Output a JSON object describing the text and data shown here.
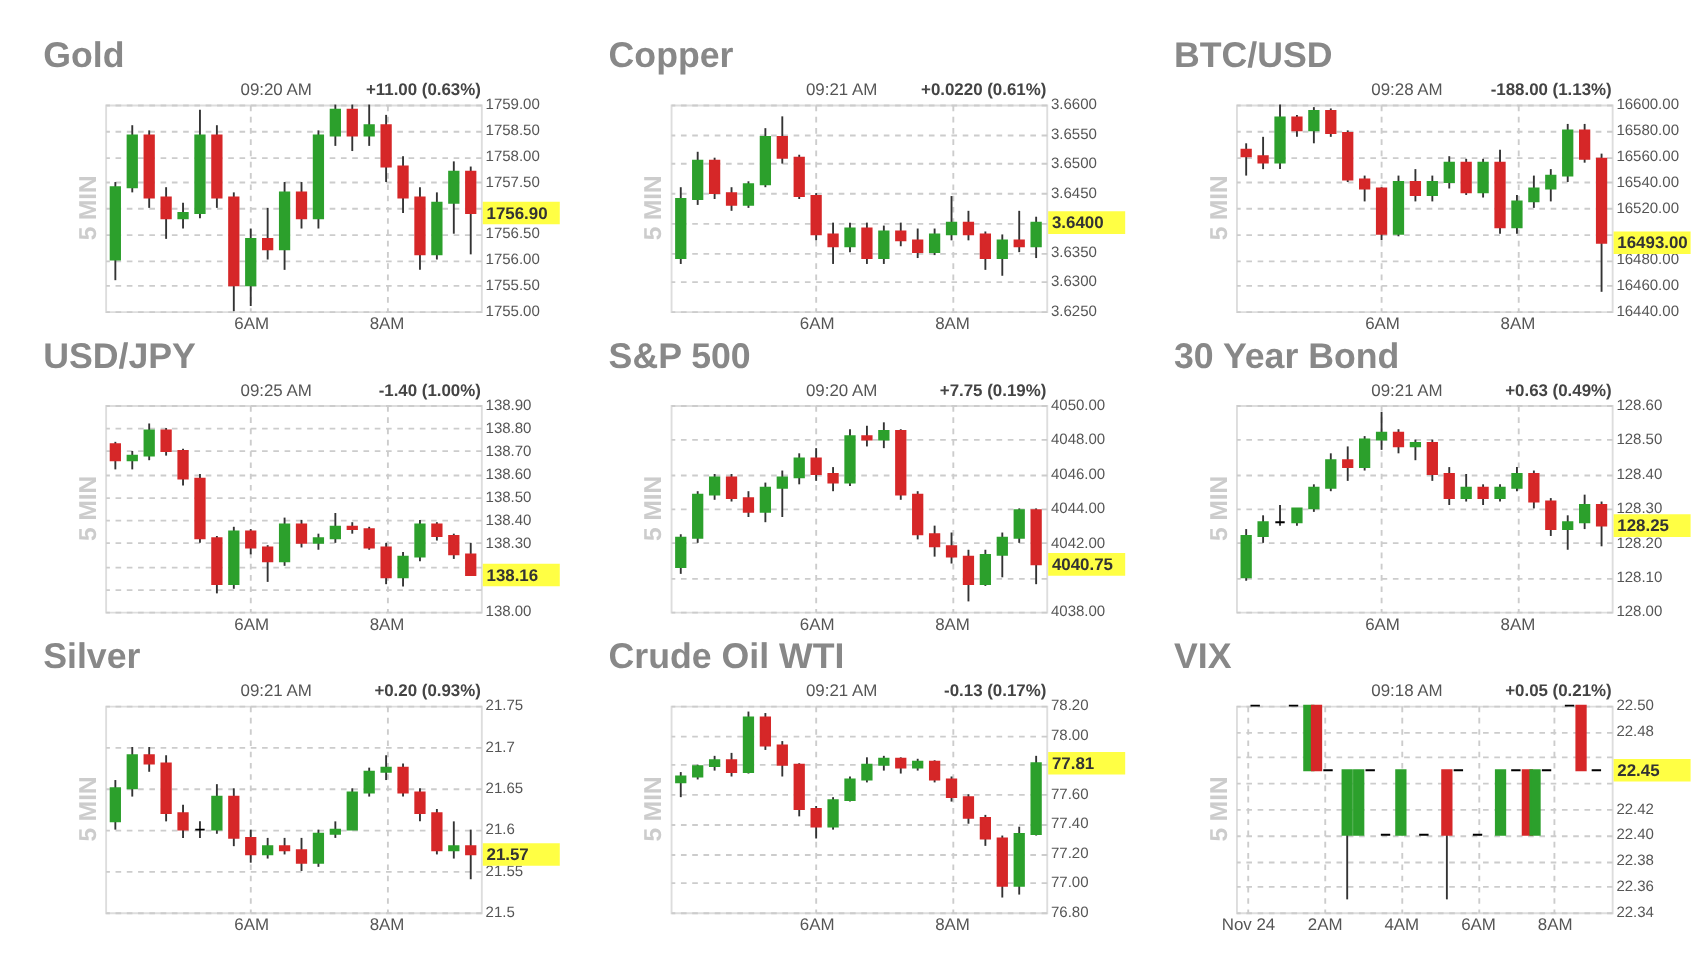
{
  "chart_data": [
    {
      "type": "candlestick",
      "title": "Gold",
      "ylabel": "5 MIN",
      "annotations": [
        "09:20 AM",
        "+11.00 (0.63%)",
        "1756.90"
      ],
      "x": [
        4,
        4.25,
        4.5,
        4.75,
        5,
        5.25,
        5.5,
        5.75,
        6,
        6.25,
        6.5,
        6.75,
        7,
        7.25,
        7.5,
        7.75,
        8,
        8.25,
        8.5,
        8.75,
        9,
        9.25
      ],
      "ohlc": [
        [
          1756.0,
          1757.5,
          1755.6,
          1757.4
        ],
        [
          1757.4,
          1758.6,
          1757.3,
          1758.4
        ],
        [
          1758.4,
          1758.5,
          1757.0,
          1757.2
        ],
        [
          1757.2,
          1757.4,
          1756.4,
          1756.8
        ],
        [
          1756.8,
          1757.1,
          1756.6,
          1756.9
        ],
        [
          1756.9,
          1758.9,
          1756.8,
          1758.4
        ],
        [
          1758.4,
          1758.6,
          1757.0,
          1757.2
        ],
        [
          1757.2,
          1757.3,
          1755.0,
          1755.5
        ],
        [
          1755.5,
          1756.6,
          1755.1,
          1756.4
        ],
        [
          1756.4,
          1757.0,
          1756.0,
          1756.2
        ],
        [
          1756.2,
          1757.5,
          1755.8,
          1757.3
        ],
        [
          1757.3,
          1757.5,
          1756.6,
          1756.8
        ],
        [
          1756.8,
          1758.5,
          1756.6,
          1758.4
        ],
        [
          1758.4,
          1759.0,
          1758.2,
          1758.9
        ],
        [
          1758.9,
          1759.0,
          1758.1,
          1758.4
        ],
        [
          1758.4,
          1759.0,
          1758.2,
          1758.6
        ],
        [
          1758.6,
          1758.8,
          1757.5,
          1757.8
        ],
        [
          1757.8,
          1758.0,
          1756.9,
          1757.2
        ],
        [
          1757.2,
          1757.4,
          1755.8,
          1756.1
        ],
        [
          1756.1,
          1757.3,
          1756.0,
          1757.1
        ],
        [
          1757.1,
          1757.9,
          1756.5,
          1757.7
        ],
        [
          1757.7,
          1757.8,
          1756.1,
          1756.9
        ]
      ],
      "colors": [
        "#2ca02c",
        "#2ca02c",
        "#d62728",
        "#d62728",
        "#2ca02c",
        "#2ca02c",
        "#d62728",
        "#d62728",
        "#2ca02c",
        "#d62728",
        "#2ca02c",
        "#d62728",
        "#2ca02c",
        "#2ca02c",
        "#d62728",
        "#2ca02c",
        "#d62728",
        "#d62728",
        "#d62728",
        "#2ca02c",
        "#2ca02c",
        "#d62728"
      ],
      "xlim": [
        3.85,
        9.4
      ],
      "xticks": [
        {
          "value": 6,
          "label": "6AM"
        },
        {
          "value": 8,
          "label": "8AM"
        }
      ],
      "ylim": [
        1755,
        1759
      ],
      "yticks": [
        {
          "value": 1755,
          "label": "1755.00"
        },
        {
          "value": 1755.5,
          "label": "1755.50"
        },
        {
          "value": 1756,
          "label": "1756.00"
        },
        {
          "value": 1756.5,
          "label": "1756.50"
        },
        {
          "value": 1757,
          "label": null
        },
        {
          "value": 1757.5,
          "label": "1757.50"
        },
        {
          "value": 1758,
          "label": "1758.00"
        },
        {
          "value": 1758.5,
          "label": "1758.50"
        },
        {
          "value": 1759,
          "label": "1759.00"
        }
      ],
      "grid": true
    },
    {
      "type": "candlestick",
      "title": "Copper",
      "ylabel": "5 MIN",
      "annotations": [
        "09:21 AM",
        "+0.0220 (0.61%)",
        "3.6400"
      ],
      "x": [
        4,
        4.25,
        4.5,
        4.75,
        5,
        5.25,
        5.5,
        5.75,
        6,
        6.25,
        6.5,
        6.75,
        7,
        7.25,
        7.5,
        7.75,
        8,
        8.25,
        8.5,
        8.75,
        9,
        9.25
      ],
      "ohlc": [
        [
          3.634,
          3.646,
          3.633,
          3.644
        ],
        [
          3.644,
          3.652,
          3.643,
          3.6505
        ],
        [
          3.6505,
          3.651,
          3.644,
          3.645
        ],
        [
          3.645,
          3.646,
          3.642,
          3.643
        ],
        [
          3.643,
          3.647,
          3.6425,
          3.6465
        ],
        [
          3.6465,
          3.656,
          3.646,
          3.6545
        ],
        [
          3.6545,
          3.658,
          3.65,
          3.651
        ],
        [
          3.651,
          3.6515,
          3.644,
          3.6445
        ],
        [
          3.6445,
          3.645,
          3.637,
          3.638
        ],
        [
          3.638,
          3.64,
          3.633,
          3.636
        ],
        [
          3.636,
          3.64,
          3.635,
          3.639
        ],
        [
          3.639,
          3.64,
          3.633,
          3.634
        ],
        [
          3.634,
          3.6395,
          3.633,
          3.6385
        ],
        [
          3.6385,
          3.64,
          3.636,
          3.637
        ],
        [
          3.637,
          3.639,
          3.634,
          3.635
        ],
        [
          3.635,
          3.639,
          3.6345,
          3.638
        ],
        [
          3.638,
          3.6445,
          3.637,
          3.64
        ],
        [
          3.64,
          3.642,
          3.637,
          3.638
        ],
        [
          3.638,
          3.6385,
          3.632,
          3.634
        ],
        [
          3.634,
          3.638,
          3.631,
          3.637
        ],
        [
          3.637,
          3.642,
          3.635,
          3.636
        ],
        [
          3.636,
          3.641,
          3.634,
          3.64
        ]
      ],
      "colors": [
        "#2ca02c",
        "#2ca02c",
        "#d62728",
        "#d62728",
        "#2ca02c",
        "#2ca02c",
        "#d62728",
        "#d62728",
        "#d62728",
        "#d62728",
        "#2ca02c",
        "#d62728",
        "#2ca02c",
        "#d62728",
        "#d62728",
        "#2ca02c",
        "#2ca02c",
        "#d62728",
        "#d62728",
        "#2ca02c",
        "#d62728",
        "#2ca02c"
      ],
      "xlim": [
        3.85,
        9.4
      ],
      "xticks": [
        {
          "value": 6,
          "label": "6AM"
        },
        {
          "value": 8,
          "label": "8AM"
        }
      ],
      "ylim": [
        3.625,
        3.66
      ],
      "yticks": [
        {
          "value": 3.625,
          "label": "3.6250"
        },
        {
          "value": 3.63,
          "label": "3.6300"
        },
        {
          "value": 3.635,
          "label": "3.6350"
        },
        {
          "value": 3.64,
          "label": null
        },
        {
          "value": 3.645,
          "label": "3.6450"
        },
        {
          "value": 3.65,
          "label": "3.6500"
        },
        {
          "value": 3.655,
          "label": "3.6550"
        },
        {
          "value": 3.66,
          "label": "3.6600"
        }
      ],
      "grid": true
    },
    {
      "type": "candlestick",
      "title": "BTC/USD",
      "ylabel": "5 MIN",
      "annotations": [
        "09:28 AM",
        "-188.00 (1.13%)",
        "16493.00"
      ],
      "x": [
        4,
        4.25,
        4.5,
        4.75,
        5,
        5.25,
        5.5,
        5.75,
        6,
        6.25,
        6.5,
        6.75,
        7,
        7.25,
        7.5,
        7.75,
        8,
        8.25,
        8.5,
        8.75,
        9,
        9.25
      ],
      "ohlc": [
        [
          16565,
          16570,
          16545,
          16560
        ],
        [
          16560,
          16575,
          16550,
          16555
        ],
        [
          16555,
          16600,
          16550,
          16590
        ],
        [
          16590,
          16592,
          16575,
          16580
        ],
        [
          16580,
          16598,
          16570,
          16595
        ],
        [
          16595,
          16597,
          16575,
          16578
        ],
        [
          16578,
          16580,
          16540,
          16542
        ],
        [
          16542,
          16545,
          16525,
          16535
        ],
        [
          16535,
          16536,
          16495,
          16500
        ],
        [
          16500,
          16545,
          16498,
          16540
        ],
        [
          16540,
          16550,
          16525,
          16530
        ],
        [
          16530,
          16545,
          16525,
          16540
        ],
        [
          16540,
          16560,
          16535,
          16555
        ],
        [
          16555,
          16558,
          16530,
          16532
        ],
        [
          16532,
          16558,
          16528,
          16555
        ],
        [
          16555,
          16565,
          16500,
          16505
        ],
        [
          16505,
          16530,
          16500,
          16525
        ],
        [
          16525,
          16545,
          16520,
          16535
        ],
        [
          16535,
          16550,
          16525,
          16545
        ],
        [
          16545,
          16585,
          16540,
          16580
        ],
        [
          16580,
          16585,
          16555,
          16558
        ],
        [
          16558,
          16562,
          16455,
          16493
        ]
      ],
      "colors": [
        "#d62728",
        "#d62728",
        "#2ca02c",
        "#d62728",
        "#2ca02c",
        "#d62728",
        "#d62728",
        "#d62728",
        "#d62728",
        "#2ca02c",
        "#d62728",
        "#2ca02c",
        "#2ca02c",
        "#d62728",
        "#2ca02c",
        "#d62728",
        "#2ca02c",
        "#2ca02c",
        "#2ca02c",
        "#2ca02c",
        "#d62728",
        "#d62728"
      ],
      "xlim": [
        3.85,
        9.4
      ],
      "xticks": [
        {
          "value": 6,
          "label": "6AM"
        },
        {
          "value": 8,
          "label": "8AM"
        }
      ],
      "ylim": [
        16440,
        16600
      ],
      "yticks": [
        {
          "value": 16440,
          "label": "16440.00"
        },
        {
          "value": 16460,
          "label": "16460.00"
        },
        {
          "value": 16480,
          "label": "16480.00"
        },
        {
          "value": 16500,
          "label": null
        },
        {
          "value": 16520,
          "label": "16520.00"
        },
        {
          "value": 16540,
          "label": "16540.00"
        },
        {
          "value": 16560,
          "label": "16560.00"
        },
        {
          "value": 16580,
          "label": "16580.00"
        },
        {
          "value": 16600,
          "label": "16600.00"
        }
      ],
      "grid": true
    },
    {
      "type": "candlestick",
      "title": "USD/JPY",
      "ylabel": "5 MIN",
      "annotations": [
        "09:25 AM",
        "-1.40 (1.00%)",
        "138.16"
      ],
      "x": [
        4,
        4.25,
        4.5,
        4.75,
        5,
        5.25,
        5.5,
        5.75,
        6,
        6.25,
        6.5,
        6.75,
        7,
        7.25,
        7.5,
        7.75,
        8,
        8.25,
        8.5,
        8.75,
        9,
        9.25
      ],
      "ohlc": [
        [
          138.73,
          138.74,
          138.62,
          138.66
        ],
        [
          138.66,
          138.7,
          138.62,
          138.68
        ],
        [
          138.68,
          138.82,
          138.66,
          138.79
        ],
        [
          138.79,
          138.8,
          138.68,
          138.7
        ],
        [
          138.7,
          138.71,
          138.55,
          138.58
        ],
        [
          138.58,
          138.6,
          138.3,
          138.32
        ],
        [
          138.32,
          138.33,
          138.08,
          138.12
        ],
        [
          138.12,
          138.37,
          138.1,
          138.35
        ],
        [
          138.35,
          138.36,
          138.25,
          138.28
        ],
        [
          138.28,
          138.29,
          138.13,
          138.22
        ],
        [
          138.22,
          138.41,
          138.2,
          138.38
        ],
        [
          138.38,
          138.4,
          138.28,
          138.3
        ],
        [
          138.3,
          138.34,
          138.27,
          138.32
        ],
        [
          138.32,
          138.43,
          138.3,
          138.37
        ],
        [
          138.37,
          138.39,
          138.34,
          138.36
        ],
        [
          138.36,
          138.37,
          138.27,
          138.28
        ],
        [
          138.28,
          138.3,
          138.12,
          138.15
        ],
        [
          138.15,
          138.26,
          138.11,
          138.24
        ],
        [
          138.24,
          138.4,
          138.22,
          138.38
        ],
        [
          138.38,
          138.39,
          138.31,
          138.33
        ],
        [
          138.33,
          138.34,
          138.23,
          138.25
        ],
        [
          138.25,
          138.3,
          138.16,
          138.16
        ]
      ],
      "colors": [
        "#d62728",
        "#2ca02c",
        "#2ca02c",
        "#d62728",
        "#d62728",
        "#d62728",
        "#d62728",
        "#2ca02c",
        "#d62728",
        "#d62728",
        "#2ca02c",
        "#d62728",
        "#2ca02c",
        "#2ca02c",
        "#d62728",
        "#d62728",
        "#d62728",
        "#2ca02c",
        "#2ca02c",
        "#d62728",
        "#d62728",
        "#d62728"
      ],
      "xlim": [
        3.85,
        9.4
      ],
      "xticks": [
        {
          "value": 6,
          "label": "6AM"
        },
        {
          "value": 8,
          "label": "8AM"
        }
      ],
      "ylim": [
        138.0,
        138.9
      ],
      "yticks": [
        {
          "value": 138.0,
          "label": "138.00"
        },
        {
          "value": 138.1,
          "label": null
        },
        {
          "value": 138.2,
          "label": null
        },
        {
          "value": 138.3,
          "label": "138.30"
        },
        {
          "value": 138.4,
          "label": "138.40"
        },
        {
          "value": 138.5,
          "label": "138.50"
        },
        {
          "value": 138.6,
          "label": "138.60"
        },
        {
          "value": 138.7,
          "label": "138.70"
        },
        {
          "value": 138.8,
          "label": "138.80"
        },
        {
          "value": 138.9,
          "label": "138.90"
        }
      ],
      "grid": true
    },
    {
      "type": "candlestick",
      "title": "S&P 500",
      "ylabel": "5 MIN",
      "annotations": [
        "09:20 AM",
        "+7.75 (0.19%)",
        "4040.75"
      ],
      "x": [
        4,
        4.25,
        4.5,
        4.75,
        5,
        5.25,
        5.5,
        5.75,
        6,
        6.25,
        6.5,
        6.75,
        7,
        7.25,
        7.5,
        7.75,
        8,
        8.25,
        8.5,
        8.75,
        9,
        9.25
      ],
      "ohlc": [
        [
          4040.6,
          4042.5,
          4040.2,
          4042.3
        ],
        [
          4042.3,
          4045.0,
          4042.0,
          4044.8
        ],
        [
          4044.8,
          4046.0,
          4044.5,
          4045.8
        ],
        [
          4045.8,
          4046.0,
          4044.4,
          4044.6
        ],
        [
          4044.6,
          4045.0,
          4043.5,
          4043.8
        ],
        [
          4043.8,
          4045.5,
          4043.2,
          4045.2
        ],
        [
          4045.2,
          4046.2,
          4043.5,
          4045.8
        ],
        [
          4045.8,
          4047.2,
          4045.4,
          4046.9
        ],
        [
          4046.9,
          4047.5,
          4045.6,
          4046.0
        ],
        [
          4046.0,
          4046.4,
          4045.0,
          4045.5
        ],
        [
          4045.5,
          4048.6,
          4045.3,
          4048.2
        ],
        [
          4048.2,
          4048.8,
          4047.6,
          4048.0
        ],
        [
          4048.0,
          4049.0,
          4047.5,
          4048.5
        ],
        [
          4048.5,
          4048.6,
          4044.5,
          4044.8
        ],
        [
          4044.8,
          4045.0,
          4042.2,
          4042.5
        ],
        [
          4042.5,
          4043.0,
          4041.2,
          4041.8
        ],
        [
          4041.8,
          4042.6,
          4040.8,
          4041.2
        ],
        [
          4041.2,
          4041.6,
          4038.6,
          4039.6
        ],
        [
          4039.6,
          4041.6,
          4039.5,
          4041.3
        ],
        [
          4041.3,
          4042.6,
          4040.0,
          4042.3
        ],
        [
          4042.3,
          4044.0,
          4042.0,
          4043.9
        ],
        [
          4043.9,
          4044.0,
          4039.6,
          4040.75
        ]
      ],
      "colors": [
        "#2ca02c",
        "#2ca02c",
        "#2ca02c",
        "#d62728",
        "#d62728",
        "#2ca02c",
        "#2ca02c",
        "#2ca02c",
        "#d62728",
        "#d62728",
        "#2ca02c",
        "#d62728",
        "#2ca02c",
        "#d62728",
        "#d62728",
        "#d62728",
        "#d62728",
        "#d62728",
        "#2ca02c",
        "#2ca02c",
        "#2ca02c",
        "#d62728"
      ],
      "xlim": [
        3.85,
        9.4
      ],
      "xticks": [
        {
          "value": 6,
          "label": "6AM"
        },
        {
          "value": 8,
          "label": "8AM"
        }
      ],
      "ylim": [
        4038,
        4050
      ],
      "yticks": [
        {
          "value": 4038,
          "label": "4038.00"
        },
        {
          "value": 4040,
          "label": null
        },
        {
          "value": 4042,
          "label": "4042.00"
        },
        {
          "value": 4044,
          "label": "4044.00"
        },
        {
          "value": 4046,
          "label": "4046.00"
        },
        {
          "value": 4048,
          "label": "4048.00"
        },
        {
          "value": 4050,
          "label": "4050.00"
        }
      ],
      "grid": true
    },
    {
      "type": "candlestick",
      "title": "30 Year Bond",
      "ylabel": "5 MIN",
      "annotations": [
        "09:21 AM",
        "+0.63 (0.49%)",
        "128.25"
      ],
      "x": [
        4,
        4.25,
        4.5,
        4.75,
        5,
        5.25,
        5.5,
        5.75,
        6,
        6.25,
        6.5,
        6.75,
        7,
        7.25,
        7.5,
        7.75,
        8,
        8.25,
        8.5,
        8.75,
        9,
        9.25
      ],
      "ohlc": [
        [
          128.1,
          128.24,
          128.09,
          128.22
        ],
        [
          128.22,
          128.28,
          128.2,
          128.26
        ],
        [
          128.26,
          128.31,
          128.25,
          128.26
        ],
        [
          128.26,
          128.3,
          128.25,
          128.3
        ],
        [
          128.3,
          128.37,
          128.29,
          128.36
        ],
        [
          128.36,
          128.46,
          128.35,
          128.44
        ],
        [
          128.44,
          128.48,
          128.38,
          128.42
        ],
        [
          128.42,
          128.51,
          128.41,
          128.5
        ],
        [
          128.5,
          128.58,
          128.47,
          128.52
        ],
        [
          128.52,
          128.53,
          128.46,
          128.48
        ],
        [
          128.48,
          128.5,
          128.44,
          128.49
        ],
        [
          128.49,
          128.5,
          128.38,
          128.4
        ],
        [
          128.4,
          128.42,
          128.31,
          128.33
        ],
        [
          128.33,
          128.4,
          128.32,
          128.36
        ],
        [
          128.36,
          128.37,
          128.31,
          128.33
        ],
        [
          128.33,
          128.37,
          128.32,
          128.36
        ],
        [
          128.36,
          128.42,
          128.35,
          128.4
        ],
        [
          128.4,
          128.41,
          128.3,
          128.32
        ],
        [
          128.32,
          128.33,
          128.22,
          128.24
        ],
        [
          128.24,
          128.28,
          128.18,
          128.26
        ],
        [
          128.26,
          128.34,
          128.24,
          128.31
        ],
        [
          128.31,
          128.32,
          128.19,
          128.25
        ]
      ],
      "colors": [
        "#2ca02c",
        "#2ca02c",
        "#000000",
        "#2ca02c",
        "#2ca02c",
        "#2ca02c",
        "#d62728",
        "#2ca02c",
        "#2ca02c",
        "#d62728",
        "#2ca02c",
        "#d62728",
        "#d62728",
        "#2ca02c",
        "#d62728",
        "#2ca02c",
        "#2ca02c",
        "#d62728",
        "#d62728",
        "#2ca02c",
        "#2ca02c",
        "#d62728"
      ],
      "xlim": [
        3.85,
        9.4
      ],
      "xticks": [
        {
          "value": 6,
          "label": "6AM"
        },
        {
          "value": 8,
          "label": "8AM"
        }
      ],
      "ylim": [
        128.0,
        128.6
      ],
      "yticks": [
        {
          "value": 128.0,
          "label": "128.00"
        },
        {
          "value": 128.1,
          "label": "128.10"
        },
        {
          "value": 128.2,
          "label": "128.20"
        },
        {
          "value": 128.3,
          "label": "128.30"
        },
        {
          "value": 128.4,
          "label": "128.40"
        },
        {
          "value": 128.5,
          "label": "128.50"
        },
        {
          "value": 128.6,
          "label": "128.60"
        }
      ],
      "grid": true
    },
    {
      "type": "candlestick",
      "title": "Silver",
      "ylabel": "5 MIN",
      "annotations": [
        "09:21 AM",
        "+0.20 (0.93%)",
        "21.57"
      ],
      "x": [
        4,
        4.25,
        4.5,
        4.75,
        5,
        5.25,
        5.5,
        5.75,
        6,
        6.25,
        6.5,
        6.75,
        7,
        7.25,
        7.5,
        7.75,
        8,
        8.25,
        8.5,
        8.75,
        9,
        9.25
      ],
      "ohlc": [
        [
          21.61,
          21.66,
          21.6,
          21.65
        ],
        [
          21.65,
          21.7,
          21.64,
          21.69
        ],
        [
          21.69,
          21.7,
          21.67,
          21.68
        ],
        [
          21.68,
          21.69,
          21.61,
          21.62
        ],
        [
          21.62,
          21.63,
          21.59,
          21.6
        ],
        [
          21.6,
          21.61,
          21.59,
          21.6
        ],
        [
          21.6,
          21.655,
          21.595,
          21.64
        ],
        [
          21.64,
          21.65,
          21.58,
          21.59
        ],
        [
          21.59,
          21.6,
          21.56,
          21.57
        ],
        [
          21.57,
          21.59,
          21.565,
          21.58
        ],
        [
          21.58,
          21.59,
          21.57,
          21.575
        ],
        [
          21.575,
          21.59,
          21.55,
          21.56
        ],
        [
          21.56,
          21.6,
          21.555,
          21.595
        ],
        [
          21.595,
          21.61,
          21.59,
          21.6
        ],
        [
          21.6,
          21.65,
          21.6,
          21.645
        ],
        [
          21.645,
          21.675,
          21.64,
          21.67
        ],
        [
          21.67,
          21.69,
          21.66,
          21.675
        ],
        [
          21.675,
          21.68,
          21.64,
          21.645
        ],
        [
          21.645,
          21.65,
          21.61,
          21.62
        ],
        [
          21.62,
          21.625,
          21.57,
          21.575
        ],
        [
          21.575,
          21.61,
          21.565,
          21.58
        ],
        [
          21.58,
          21.6,
          21.54,
          21.57
        ]
      ],
      "colors": [
        "#2ca02c",
        "#2ca02c",
        "#d62728",
        "#d62728",
        "#d62728",
        "#000000",
        "#2ca02c",
        "#d62728",
        "#d62728",
        "#2ca02c",
        "#d62728",
        "#d62728",
        "#2ca02c",
        "#2ca02c",
        "#2ca02c",
        "#2ca02c",
        "#2ca02c",
        "#d62728",
        "#d62728",
        "#d62728",
        "#2ca02c",
        "#d62728"
      ],
      "xlim": [
        3.85,
        9.4
      ],
      "xticks": [
        {
          "value": 6,
          "label": "6AM"
        },
        {
          "value": 8,
          "label": "8AM"
        }
      ],
      "ylim": [
        21.5,
        21.75
      ],
      "yticks": [
        21.5,
        21.55,
        21.6,
        21.65,
        21.7,
        21.75
      ],
      "grid": true
    },
    {
      "type": "candlestick",
      "title": "Crude Oil WTI",
      "ylabel": "5 MIN",
      "annotations": [
        "09:21 AM",
        "-0.13 (0.17%)",
        "77.81"
      ],
      "x": [
        4,
        4.25,
        4.5,
        4.75,
        5,
        5.25,
        5.5,
        5.75,
        6,
        6.25,
        6.5,
        6.75,
        7,
        7.25,
        7.5,
        7.75,
        8,
        8.25,
        8.5,
        8.75,
        9,
        9.25
      ],
      "ohlc": [
        [
          77.68,
          77.75,
          77.58,
          77.72
        ],
        [
          77.72,
          77.8,
          77.7,
          77.79
        ],
        [
          77.79,
          77.86,
          77.76,
          77.83
        ],
        [
          77.83,
          77.88,
          77.72,
          77.75
        ],
        [
          77.75,
          78.16,
          77.74,
          78.12
        ],
        [
          78.12,
          78.15,
          77.9,
          77.93
        ],
        [
          77.93,
          77.96,
          77.72,
          77.8
        ],
        [
          77.8,
          77.81,
          77.45,
          77.5
        ],
        [
          77.5,
          77.52,
          77.3,
          77.38
        ],
        [
          77.38,
          77.58,
          77.36,
          77.56
        ],
        [
          77.56,
          77.72,
          77.55,
          77.7
        ],
        [
          77.7,
          77.85,
          77.68,
          77.8
        ],
        [
          77.8,
          77.86,
          77.76,
          77.84
        ],
        [
          77.84,
          77.85,
          77.74,
          77.78
        ],
        [
          77.78,
          77.84,
          77.76,
          77.82
        ],
        [
          77.82,
          77.83,
          77.68,
          77.7
        ],
        [
          77.7,
          77.72,
          77.55,
          77.58
        ],
        [
          77.58,
          77.6,
          77.4,
          77.44
        ],
        [
          77.44,
          77.46,
          77.25,
          77.3
        ],
        [
          77.3,
          77.32,
          76.9,
          76.98
        ],
        [
          76.98,
          77.38,
          76.92,
          77.33
        ],
        [
          77.33,
          77.86,
          77.32,
          77.81
        ]
      ],
      "colors": [
        "#2ca02c",
        "#2ca02c",
        "#2ca02c",
        "#d62728",
        "#2ca02c",
        "#d62728",
        "#d62728",
        "#d62728",
        "#d62728",
        "#2ca02c",
        "#2ca02c",
        "#2ca02c",
        "#2ca02c",
        "#d62728",
        "#2ca02c",
        "#d62728",
        "#d62728",
        "#d62728",
        "#d62728",
        "#d62728",
        "#2ca02c",
        "#2ca02c"
      ],
      "xlim": [
        3.85,
        9.4
      ],
      "xticks": [
        {
          "value": 6,
          "label": "6AM"
        },
        {
          "value": 8,
          "label": "8AM"
        }
      ],
      "ylim": [
        76.8,
        78.2
      ],
      "yticks": [
        {
          "value": 76.8,
          "label": "76.80"
        },
        {
          "value": 77.0,
          "label": "77.00"
        },
        {
          "value": 77.2,
          "label": "77.20"
        },
        {
          "value": 77.4,
          "label": "77.40"
        },
        {
          "value": 77.6,
          "label": "77.60"
        },
        {
          "value": 77.8,
          "label": null
        },
        {
          "value": 78.0,
          "label": "78.00"
        },
        {
          "value": 78.2,
          "label": "78.20"
        }
      ],
      "grid": true
    },
    {
      "type": "candlestick",
      "title": "VIX",
      "ylabel": "5 MIN",
      "annotations": [
        "09:18 AM",
        "+0.05 (0.21%)",
        "22.45"
      ],
      "x": [
        0.2,
        1.2,
        1.6,
        1.8,
        2.1,
        2.6,
        2.9,
        3.2,
        3.6,
        4.0,
        4.6,
        5.2,
        5.5,
        6.0,
        6.6,
        7.0,
        7.3,
        7.5,
        7.8,
        8.4,
        8.7,
        9.1
      ],
      "ohlc": [
        [
          22.5,
          22.5,
          22.5,
          22.5
        ],
        [
          22.5,
          22.5,
          22.5,
          22.5
        ],
        [
          22.45,
          22.5,
          22.45,
          22.5
        ],
        [
          22.5,
          22.5,
          22.45,
          22.45
        ],
        [
          22.45,
          22.45,
          22.45,
          22.45
        ],
        [
          22.4,
          22.45,
          22.35,
          22.45
        ],
        [
          22.4,
          22.45,
          22.4,
          22.45
        ],
        [
          22.45,
          22.45,
          22.45,
          22.45
        ],
        [
          22.4,
          22.4,
          22.4,
          22.4
        ],
        [
          22.4,
          22.45,
          22.4,
          22.45
        ],
        [
          22.4,
          22.4,
          22.4,
          22.4
        ],
        [
          22.45,
          22.45,
          22.35,
          22.4
        ],
        [
          22.45,
          22.45,
          22.45,
          22.45
        ],
        [
          22.4,
          22.4,
          22.4,
          22.4
        ],
        [
          22.4,
          22.45,
          22.4,
          22.45
        ],
        [
          22.45,
          22.45,
          22.45,
          22.45
        ],
        [
          22.45,
          22.45,
          22.4,
          22.4
        ],
        [
          22.4,
          22.45,
          22.4,
          22.45
        ],
        [
          22.45,
          22.45,
          22.45,
          22.45
        ],
        [
          22.5,
          22.5,
          22.5,
          22.5
        ],
        [
          22.5,
          22.5,
          22.45,
          22.45
        ],
        [
          22.45,
          22.45,
          22.45,
          22.45
        ]
      ],
      "colors": [
        "#000000",
        "#000000",
        "#2ca02c",
        "#d62728",
        "#000000",
        "#2ca02c",
        "#2ca02c",
        "#000000",
        "#000000",
        "#2ca02c",
        "#000000",
        "#d62728",
        "#000000",
        "#000000",
        "#2ca02c",
        "#000000",
        "#d62728",
        "#2ca02c",
        "#000000",
        "#000000",
        "#d62728",
        "#000000"
      ],
      "xlim": [
        -0.3,
        9.5
      ],
      "xticks": [
        {
          "value": 0,
          "label": "Nov 24"
        },
        {
          "value": 2,
          "label": "2AM"
        },
        {
          "value": 4,
          "label": "4AM"
        },
        {
          "value": 6,
          "label": "6AM"
        },
        {
          "value": 8,
          "label": "8AM"
        }
      ],
      "ylim": [
        22.34,
        22.5
      ],
      "yticks": [
        22.34,
        22.36,
        22.38,
        {
          "value": 22.4,
          "label": "22.40"
        },
        22.42,
        {
          "value": 22.44,
          "label": null
        },
        {
          "value": 22.46,
          "label": null
        },
        22.48,
        {
          "value": 22.5,
          "label": "22.50"
        }
      ],
      "grid": true
    }
  ]
}
